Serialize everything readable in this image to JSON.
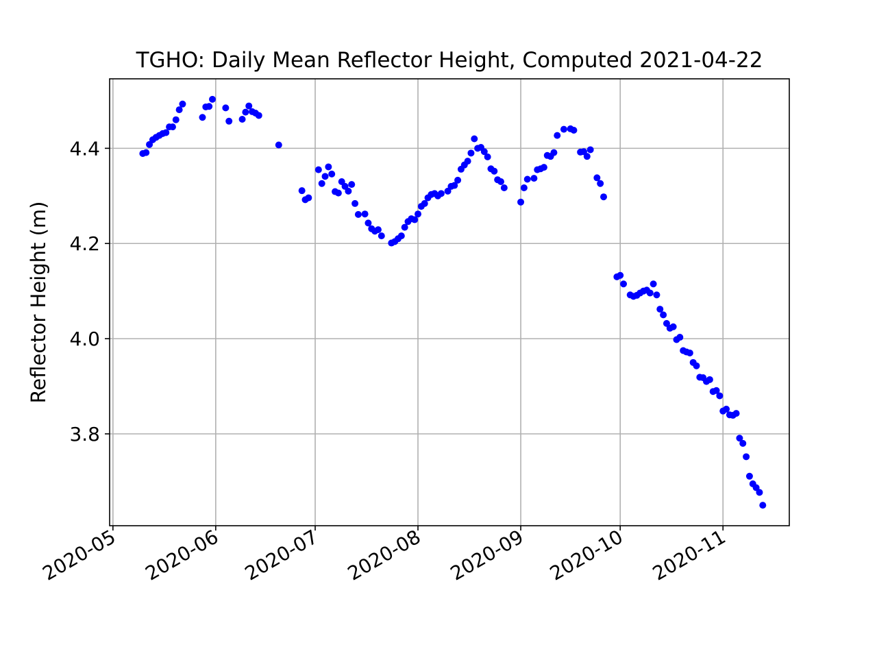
{
  "chart_data": {
    "type": "scatter",
    "title": "TGHO: Daily Mean Reflector Height, Computed 2021-04-22",
    "xlabel": "",
    "ylabel": "Reflector Height (m)",
    "y_inverted": true,
    "xlim": [
      "2020-04-30",
      "2020-11-21"
    ],
    "ylim": [
      4.546,
      3.607
    ],
    "grid": true,
    "marker_color": "#0000ff",
    "x_ticks": [
      {
        "date": "2020-05-01",
        "label": "2020-05"
      },
      {
        "date": "2020-06-01",
        "label": "2020-06"
      },
      {
        "date": "2020-07-01",
        "label": "2020-07"
      },
      {
        "date": "2020-08-01",
        "label": "2020-08"
      },
      {
        "date": "2020-09-01",
        "label": "2020-09"
      },
      {
        "date": "2020-10-01",
        "label": "2020-10"
      },
      {
        "date": "2020-11-01",
        "label": "2020-11"
      }
    ],
    "y_ticks": [
      {
        "value": 3.8,
        "label": "3.8"
      },
      {
        "value": 4.0,
        "label": "4.0"
      },
      {
        "value": 4.2,
        "label": "4.2"
      },
      {
        "value": 4.4,
        "label": "4.4"
      }
    ],
    "series": [
      {
        "points": [
          [
            "2020-05-10",
            4.389
          ],
          [
            "2020-05-11",
            4.391
          ],
          [
            "2020-05-12",
            4.408
          ],
          [
            "2020-05-13",
            4.418
          ],
          [
            "2020-05-14",
            4.423
          ],
          [
            "2020-05-15",
            4.427
          ],
          [
            "2020-05-16",
            4.431
          ],
          [
            "2020-05-17",
            4.433
          ],
          [
            "2020-05-18",
            4.445
          ],
          [
            "2020-05-19",
            4.445
          ],
          [
            "2020-05-20",
            4.46
          ],
          [
            "2020-05-21",
            4.481
          ],
          [
            "2020-05-22",
            4.493
          ],
          [
            "2020-05-28",
            4.465
          ],
          [
            "2020-05-29",
            4.487
          ],
          [
            "2020-05-30",
            4.488
          ],
          [
            "2020-05-31",
            4.503
          ],
          [
            "2020-06-04",
            4.485
          ],
          [
            "2020-06-05",
            4.457
          ],
          [
            "2020-06-09",
            4.461
          ],
          [
            "2020-06-10",
            4.476
          ],
          [
            "2020-06-11",
            4.489
          ],
          [
            "2020-06-12",
            4.477
          ],
          [
            "2020-06-13",
            4.474
          ],
          [
            "2020-06-14",
            4.469
          ],
          [
            "2020-06-20",
            4.407
          ],
          [
            "2020-06-27",
            4.311
          ],
          [
            "2020-06-28",
            4.292
          ],
          [
            "2020-06-29",
            4.296
          ],
          [
            "2020-07-02",
            4.355
          ],
          [
            "2020-07-03",
            4.326
          ],
          [
            "2020-07-04",
            4.341
          ],
          [
            "2020-07-05",
            4.361
          ],
          [
            "2020-07-06",
            4.346
          ],
          [
            "2020-07-07",
            4.309
          ],
          [
            "2020-07-08",
            4.306
          ],
          [
            "2020-07-09",
            4.33
          ],
          [
            "2020-07-10",
            4.32
          ],
          [
            "2020-07-11",
            4.31
          ],
          [
            "2020-07-12",
            4.324
          ],
          [
            "2020-07-13",
            4.284
          ],
          [
            "2020-07-14",
            4.261
          ],
          [
            "2020-07-16",
            4.262
          ],
          [
            "2020-07-17",
            4.243
          ],
          [
            "2020-07-18",
            4.231
          ],
          [
            "2020-07-19",
            4.226
          ],
          [
            "2020-07-20",
            4.229
          ],
          [
            "2020-07-21",
            4.216
          ],
          [
            "2020-07-24",
            4.201
          ],
          [
            "2020-07-25",
            4.204
          ],
          [
            "2020-07-26",
            4.21
          ],
          [
            "2020-07-27",
            4.216
          ],
          [
            "2020-07-28",
            4.234
          ],
          [
            "2020-07-29",
            4.246
          ],
          [
            "2020-07-30",
            4.252
          ],
          [
            "2020-07-31",
            4.25
          ],
          [
            "2020-08-01",
            4.262
          ],
          [
            "2020-08-02",
            4.278
          ],
          [
            "2020-08-03",
            4.284
          ],
          [
            "2020-08-04",
            4.296
          ],
          [
            "2020-08-05",
            4.303
          ],
          [
            "2020-08-06",
            4.305
          ],
          [
            "2020-08-07",
            4.3
          ],
          [
            "2020-08-08",
            4.305
          ],
          [
            "2020-08-10",
            4.31
          ],
          [
            "2020-08-11",
            4.32
          ],
          [
            "2020-08-12",
            4.322
          ],
          [
            "2020-08-13",
            4.333
          ],
          [
            "2020-08-14",
            4.356
          ],
          [
            "2020-08-15",
            4.365
          ],
          [
            "2020-08-16",
            4.373
          ],
          [
            "2020-08-17",
            4.39
          ],
          [
            "2020-08-18",
            4.42
          ],
          [
            "2020-08-19",
            4.4
          ],
          [
            "2020-08-20",
            4.402
          ],
          [
            "2020-08-21",
            4.393
          ],
          [
            "2020-08-22",
            4.382
          ],
          [
            "2020-08-23",
            4.357
          ],
          [
            "2020-08-24",
            4.352
          ],
          [
            "2020-08-25",
            4.334
          ],
          [
            "2020-08-26",
            4.33
          ],
          [
            "2020-08-27",
            4.317
          ],
          [
            "2020-09-01",
            4.287
          ],
          [
            "2020-09-02",
            4.317
          ],
          [
            "2020-09-03",
            4.335
          ],
          [
            "2020-09-05",
            4.337
          ],
          [
            "2020-09-06",
            4.355
          ],
          [
            "2020-09-07",
            4.357
          ],
          [
            "2020-09-08",
            4.36
          ],
          [
            "2020-09-09",
            4.385
          ],
          [
            "2020-09-10",
            4.383
          ],
          [
            "2020-09-11",
            4.391
          ],
          [
            "2020-09-12",
            4.427
          ],
          [
            "2020-09-14",
            4.44
          ],
          [
            "2020-09-16",
            4.441
          ],
          [
            "2020-09-17",
            4.438
          ],
          [
            "2020-09-19",
            4.392
          ],
          [
            "2020-09-20",
            4.393
          ],
          [
            "2020-09-21",
            4.383
          ],
          [
            "2020-09-22",
            4.397
          ],
          [
            "2020-09-24",
            4.338
          ],
          [
            "2020-09-25",
            4.326
          ],
          [
            "2020-09-26",
            4.298
          ],
          [
            "2020-09-30",
            4.13
          ],
          [
            "2020-10-01",
            4.133
          ],
          [
            "2020-10-02",
            4.115
          ],
          [
            "2020-10-04",
            4.092
          ],
          [
            "2020-10-05",
            4.089
          ],
          [
            "2020-10-06",
            4.091
          ],
          [
            "2020-10-07",
            4.096
          ],
          [
            "2020-10-08",
            4.1
          ],
          [
            "2020-10-09",
            4.102
          ],
          [
            "2020-10-10",
            4.096
          ],
          [
            "2020-10-11",
            4.115
          ],
          [
            "2020-10-12",
            4.092
          ],
          [
            "2020-10-13",
            4.062
          ],
          [
            "2020-10-14",
            4.05
          ],
          [
            "2020-10-15",
            4.032
          ],
          [
            "2020-10-16",
            4.022
          ],
          [
            "2020-10-17",
            4.025
          ],
          [
            "2020-10-18",
            3.998
          ],
          [
            "2020-10-19",
            4.003
          ],
          [
            "2020-10-20",
            3.975
          ],
          [
            "2020-10-21",
            3.972
          ],
          [
            "2020-10-22",
            3.97
          ],
          [
            "2020-10-23",
            3.95
          ],
          [
            "2020-10-24",
            3.943
          ],
          [
            "2020-10-25",
            3.919
          ],
          [
            "2020-10-26",
            3.918
          ],
          [
            "2020-10-27",
            3.91
          ],
          [
            "2020-10-28",
            3.914
          ],
          [
            "2020-10-29",
            3.889
          ],
          [
            "2020-10-30",
            3.891
          ],
          [
            "2020-10-31",
            3.88
          ],
          [
            "2020-11-01",
            3.848
          ],
          [
            "2020-11-02",
            3.852
          ],
          [
            "2020-11-03",
            3.84
          ],
          [
            "2020-11-04",
            3.839
          ],
          [
            "2020-11-05",
            3.843
          ],
          [
            "2020-11-06",
            3.791
          ],
          [
            "2020-11-07",
            3.78
          ],
          [
            "2020-11-08",
            3.752
          ],
          [
            "2020-11-09",
            3.711
          ],
          [
            "2020-11-10",
            3.695
          ],
          [
            "2020-11-11",
            3.687
          ],
          [
            "2020-11-12",
            3.677
          ],
          [
            "2020-11-13",
            3.65
          ]
        ]
      }
    ]
  }
}
